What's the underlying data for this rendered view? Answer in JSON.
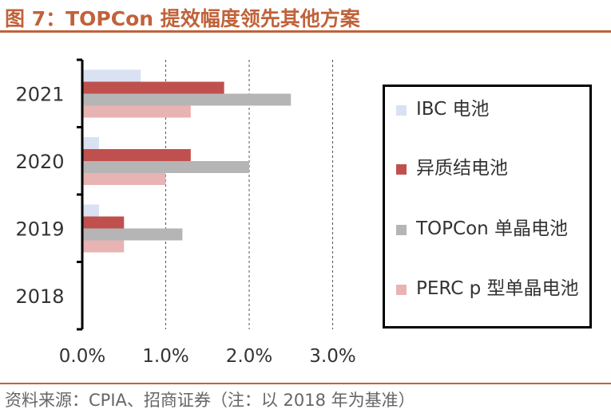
{
  "header": {
    "title": "图 7：TOPCon 提效幅度领先其他方案"
  },
  "footer": {
    "source": "资料来源：CPIA、招商证券（注：以 2018 年为基准）"
  },
  "colors": {
    "accent": "#c0623a",
    "ibc": "#d9e1f2",
    "hetero": "#c0504d",
    "topcon": "#b5b5b5",
    "perc": "#e8b3b3"
  },
  "chart_data": {
    "type": "bar",
    "orientation": "horizontal",
    "categories": [
      "2018",
      "2019",
      "2020",
      "2021"
    ],
    "series": [
      {
        "name": "IBC 电池",
        "color": "#d9e1f2",
        "values": [
          0,
          0.2,
          0.2,
          0.7
        ]
      },
      {
        "name": "异质结电池",
        "color": "#c0504d",
        "values": [
          0,
          0.5,
          1.3,
          1.7
        ]
      },
      {
        "name": "TOPCon 单晶电池",
        "color": "#b5b5b5",
        "values": [
          0,
          1.2,
          2.0,
          2.5
        ]
      },
      {
        "name": "PERC p 型单晶电池",
        "color": "#e8b3b3",
        "values": [
          0,
          0.5,
          1.0,
          1.3
        ]
      }
    ],
    "xlim": [
      0,
      3.0
    ],
    "xticks": [
      "0.0%",
      "1.0%",
      "2.0%",
      "3.0%"
    ],
    "grid": "vertical dashed",
    "legend": "right"
  }
}
